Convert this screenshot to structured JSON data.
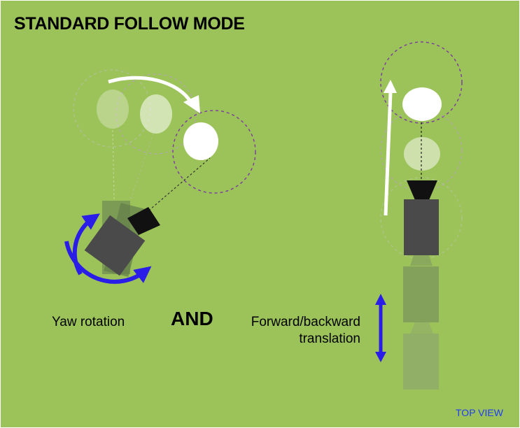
{
  "title": "STANDARD FOLLOW MODE",
  "labels": {
    "yaw": "Yaw rotation",
    "and": "AND",
    "forward_line1": "Forward/backward",
    "forward_line2": "translation",
    "top_view": "TOP VIEW"
  },
  "colors": {
    "background": "#9cc35a",
    "camera_body": "#4a4a4a",
    "rotation_arrow": "#2a1de8",
    "subject": "#ffffff",
    "range_circle": "#7a3a9e",
    "top_view_text": "#1f3cf0"
  }
}
